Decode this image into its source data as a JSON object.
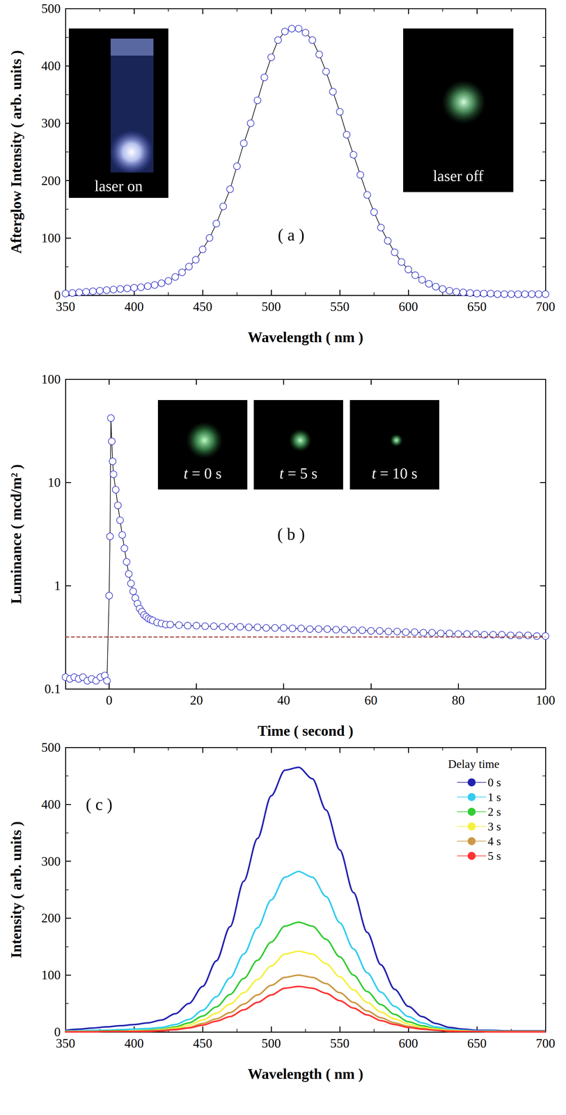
{
  "chart_data": [
    {
      "type": "line",
      "panel_label": "( a )",
      "x_label": "Wavelength ( nm )",
      "y_label": "Afterglow Intensity ( arb. units )",
      "xlim": [
        350,
        700
      ],
      "xticks": [
        350,
        400,
        450,
        500,
        550,
        600,
        650,
        700
      ],
      "ylim": [
        0,
        500
      ],
      "yticks": [
        0,
        100,
        200,
        300,
        400,
        500
      ],
      "grid": false,
      "marker": "open circle",
      "insets": [
        {
          "label": "laser on"
        },
        {
          "label": "laser off"
        }
      ],
      "x": [
        350,
        355,
        360,
        365,
        370,
        375,
        380,
        385,
        390,
        395,
        400,
        405,
        410,
        415,
        420,
        425,
        430,
        435,
        440,
        445,
        450,
        455,
        460,
        465,
        470,
        475,
        480,
        485,
        490,
        495,
        500,
        505,
        510,
        515,
        520,
        525,
        530,
        535,
        540,
        545,
        550,
        555,
        560,
        565,
        570,
        575,
        580,
        585,
        590,
        595,
        600,
        605,
        610,
        615,
        620,
        625,
        630,
        635,
        640,
        645,
        650,
        655,
        660,
        665,
        670,
        675,
        680,
        685,
        690,
        695,
        700
      ],
      "series": [
        {
          "color": "#3535c8",
          "values": [
            3,
            4,
            5,
            6,
            7,
            8,
            9,
            10,
            11,
            12,
            13,
            14,
            16,
            18,
            21,
            25,
            32,
            40,
            50,
            62,
            80,
            100,
            125,
            155,
            185,
            225,
            265,
            300,
            340,
            380,
            415,
            445,
            460,
            465,
            465,
            458,
            445,
            420,
            390,
            355,
            320,
            280,
            245,
            210,
            175,
            145,
            118,
            95,
            75,
            58,
            45,
            35,
            27,
            20,
            15,
            11,
            8,
            6,
            5,
            4,
            3,
            3,
            3,
            2,
            2,
            2,
            2,
            2,
            2,
            2,
            2
          ]
        }
      ]
    },
    {
      "type": "line",
      "panel_label": "( b )",
      "x_label": "Time ( second )",
      "y_label": "Luminance ( mcd/m² )",
      "xlim": [
        -10,
        100
      ],
      "xticks": [
        0,
        20,
        40,
        60,
        80,
        100
      ],
      "ylim": [
        0.1,
        100
      ],
      "yticks": [
        0.1,
        1,
        10,
        100
      ],
      "log": "y",
      "grid": false,
      "marker": "open circle",
      "reference_line": {
        "value": 0.32,
        "color": "#993333",
        "line_style": "dashed"
      },
      "insets": [
        {
          "label": "t = 0 s"
        },
        {
          "label": "t = 5 s"
        },
        {
          "label": "t = 10 s"
        }
      ],
      "x": [
        -10,
        -9,
        -8,
        -7,
        -6,
        -5,
        -4,
        -3,
        -2,
        -1,
        -0.5,
        0,
        0.2,
        0.4,
        0.6,
        0.8,
        1,
        1.5,
        2,
        2.5,
        3,
        3.5,
        4,
        4.5,
        5,
        5.5,
        6,
        6.5,
        7,
        7.5,
        8,
        8.5,
        9,
        9.5,
        10,
        11,
        12,
        13,
        14,
        16,
        18,
        20,
        22,
        24,
        26,
        28,
        30,
        32,
        34,
        36,
        38,
        40,
        42,
        44,
        46,
        48,
        50,
        52,
        54,
        56,
        58,
        60,
        62,
        64,
        66,
        68,
        70,
        72,
        74,
        76,
        78,
        80,
        82,
        84,
        86,
        88,
        90,
        92,
        94,
        96,
        98,
        100
      ],
      "series": [
        {
          "color": "#3535c8",
          "values": [
            0.13,
            0.125,
            0.13,
            0.125,
            0.13,
            0.12,
            0.125,
            0.12,
            0.13,
            0.135,
            0.12,
            0.8,
            3,
            42,
            25,
            16,
            12,
            8.5,
            6,
            4.3,
            3.1,
            2.3,
            1.7,
            1.3,
            1.05,
            0.88,
            0.76,
            0.67,
            0.6,
            0.56,
            0.52,
            0.5,
            0.48,
            0.47,
            0.46,
            0.44,
            0.43,
            0.42,
            0.42,
            0.415,
            0.41,
            0.41,
            0.405,
            0.405,
            0.4,
            0.4,
            0.4,
            0.395,
            0.395,
            0.39,
            0.39,
            0.39,
            0.385,
            0.385,
            0.38,
            0.38,
            0.38,
            0.375,
            0.375,
            0.37,
            0.37,
            0.365,
            0.365,
            0.36,
            0.36,
            0.355,
            0.355,
            0.35,
            0.35,
            0.345,
            0.345,
            0.34,
            0.34,
            0.34,
            0.335,
            0.335,
            0.335,
            0.33,
            0.33,
            0.33,
            0.325,
            0.325
          ]
        }
      ]
    },
    {
      "type": "line",
      "panel_label": "( c )",
      "x_label": "Wavelength ( nm )",
      "y_label": "Intensity ( arb. units )",
      "xlim": [
        350,
        700
      ],
      "xticks": [
        350,
        400,
        450,
        500,
        550,
        600,
        650,
        700
      ],
      "ylim": [
        0,
        500
      ],
      "yticks": [
        0,
        100,
        200,
        300,
        400,
        500
      ],
      "grid": false,
      "legend": "upper right",
      "legend_title": "Delay time",
      "x": [
        350,
        360,
        370,
        380,
        390,
        400,
        410,
        420,
        430,
        440,
        450,
        460,
        470,
        480,
        490,
        500,
        510,
        520,
        530,
        540,
        550,
        560,
        570,
        580,
        590,
        600,
        610,
        620,
        630,
        640,
        650,
        660,
        670,
        680,
        690,
        700
      ],
      "series": [
        {
          "name": "0 s",
          "color": "#2222b0",
          "values": [
            3,
            5,
            7,
            9,
            11,
            13,
            16,
            21,
            32,
            50,
            80,
            125,
            185,
            265,
            340,
            415,
            460,
            465,
            445,
            390,
            320,
            245,
            175,
            118,
            75,
            45,
            27,
            15,
            8,
            5,
            3,
            3,
            2,
            2,
            2,
            2
          ]
        },
        {
          "name": "1 s",
          "color": "#33ccee",
          "values": [
            2,
            2,
            3,
            3,
            4,
            5,
            6,
            8,
            13,
            22,
            38,
            62,
            95,
            137,
            183,
            232,
            272,
            282,
            272,
            238,
            192,
            146,
            104,
            70,
            45,
            27,
            16,
            9,
            5,
            3,
            2,
            2,
            1,
            1,
            1,
            1
          ]
        },
        {
          "name": "2 s",
          "color": "#33cc33",
          "values": [
            1,
            1,
            1,
            2,
            2,
            2,
            3,
            5,
            9,
            16,
            28,
            44,
            66,
            94,
            126,
            158,
            186,
            193,
            186,
            163,
            132,
            100,
            71,
            48,
            31,
            18,
            11,
            6,
            3,
            2,
            1,
            1,
            1,
            1,
            1,
            1
          ]
        },
        {
          "name": "3 s",
          "color": "#f5f040",
          "values": [
            1,
            1,
            1,
            1,
            1,
            2,
            2,
            4,
            7,
            12,
            21,
            33,
            49,
            69,
            92,
            116,
            137,
            142,
            137,
            120,
            97,
            74,
            52,
            35,
            23,
            14,
            8,
            5,
            3,
            2,
            1,
            1,
            1,
            1,
            1,
            1
          ]
        },
        {
          "name": "4 s",
          "color": "#cc9944",
          "values": [
            1,
            1,
            1,
            1,
            1,
            1,
            2,
            3,
            5,
            8,
            15,
            23,
            34,
            49,
            65,
            82,
            96,
            100,
            96,
            85,
            69,
            52,
            37,
            25,
            16,
            10,
            6,
            3,
            2,
            1,
            1,
            1,
            1,
            1,
            1,
            1
          ]
        },
        {
          "name": "5 s",
          "color": "#ff3333",
          "values": [
            0,
            0,
            0,
            1,
            1,
            1,
            1,
            2,
            4,
            7,
            12,
            19,
            27,
            39,
            52,
            65,
            77,
            80,
            77,
            68,
            55,
            42,
            30,
            20,
            13,
            8,
            5,
            3,
            1,
            1,
            1,
            0,
            0,
            0,
            0,
            0
          ]
        }
      ]
    }
  ]
}
